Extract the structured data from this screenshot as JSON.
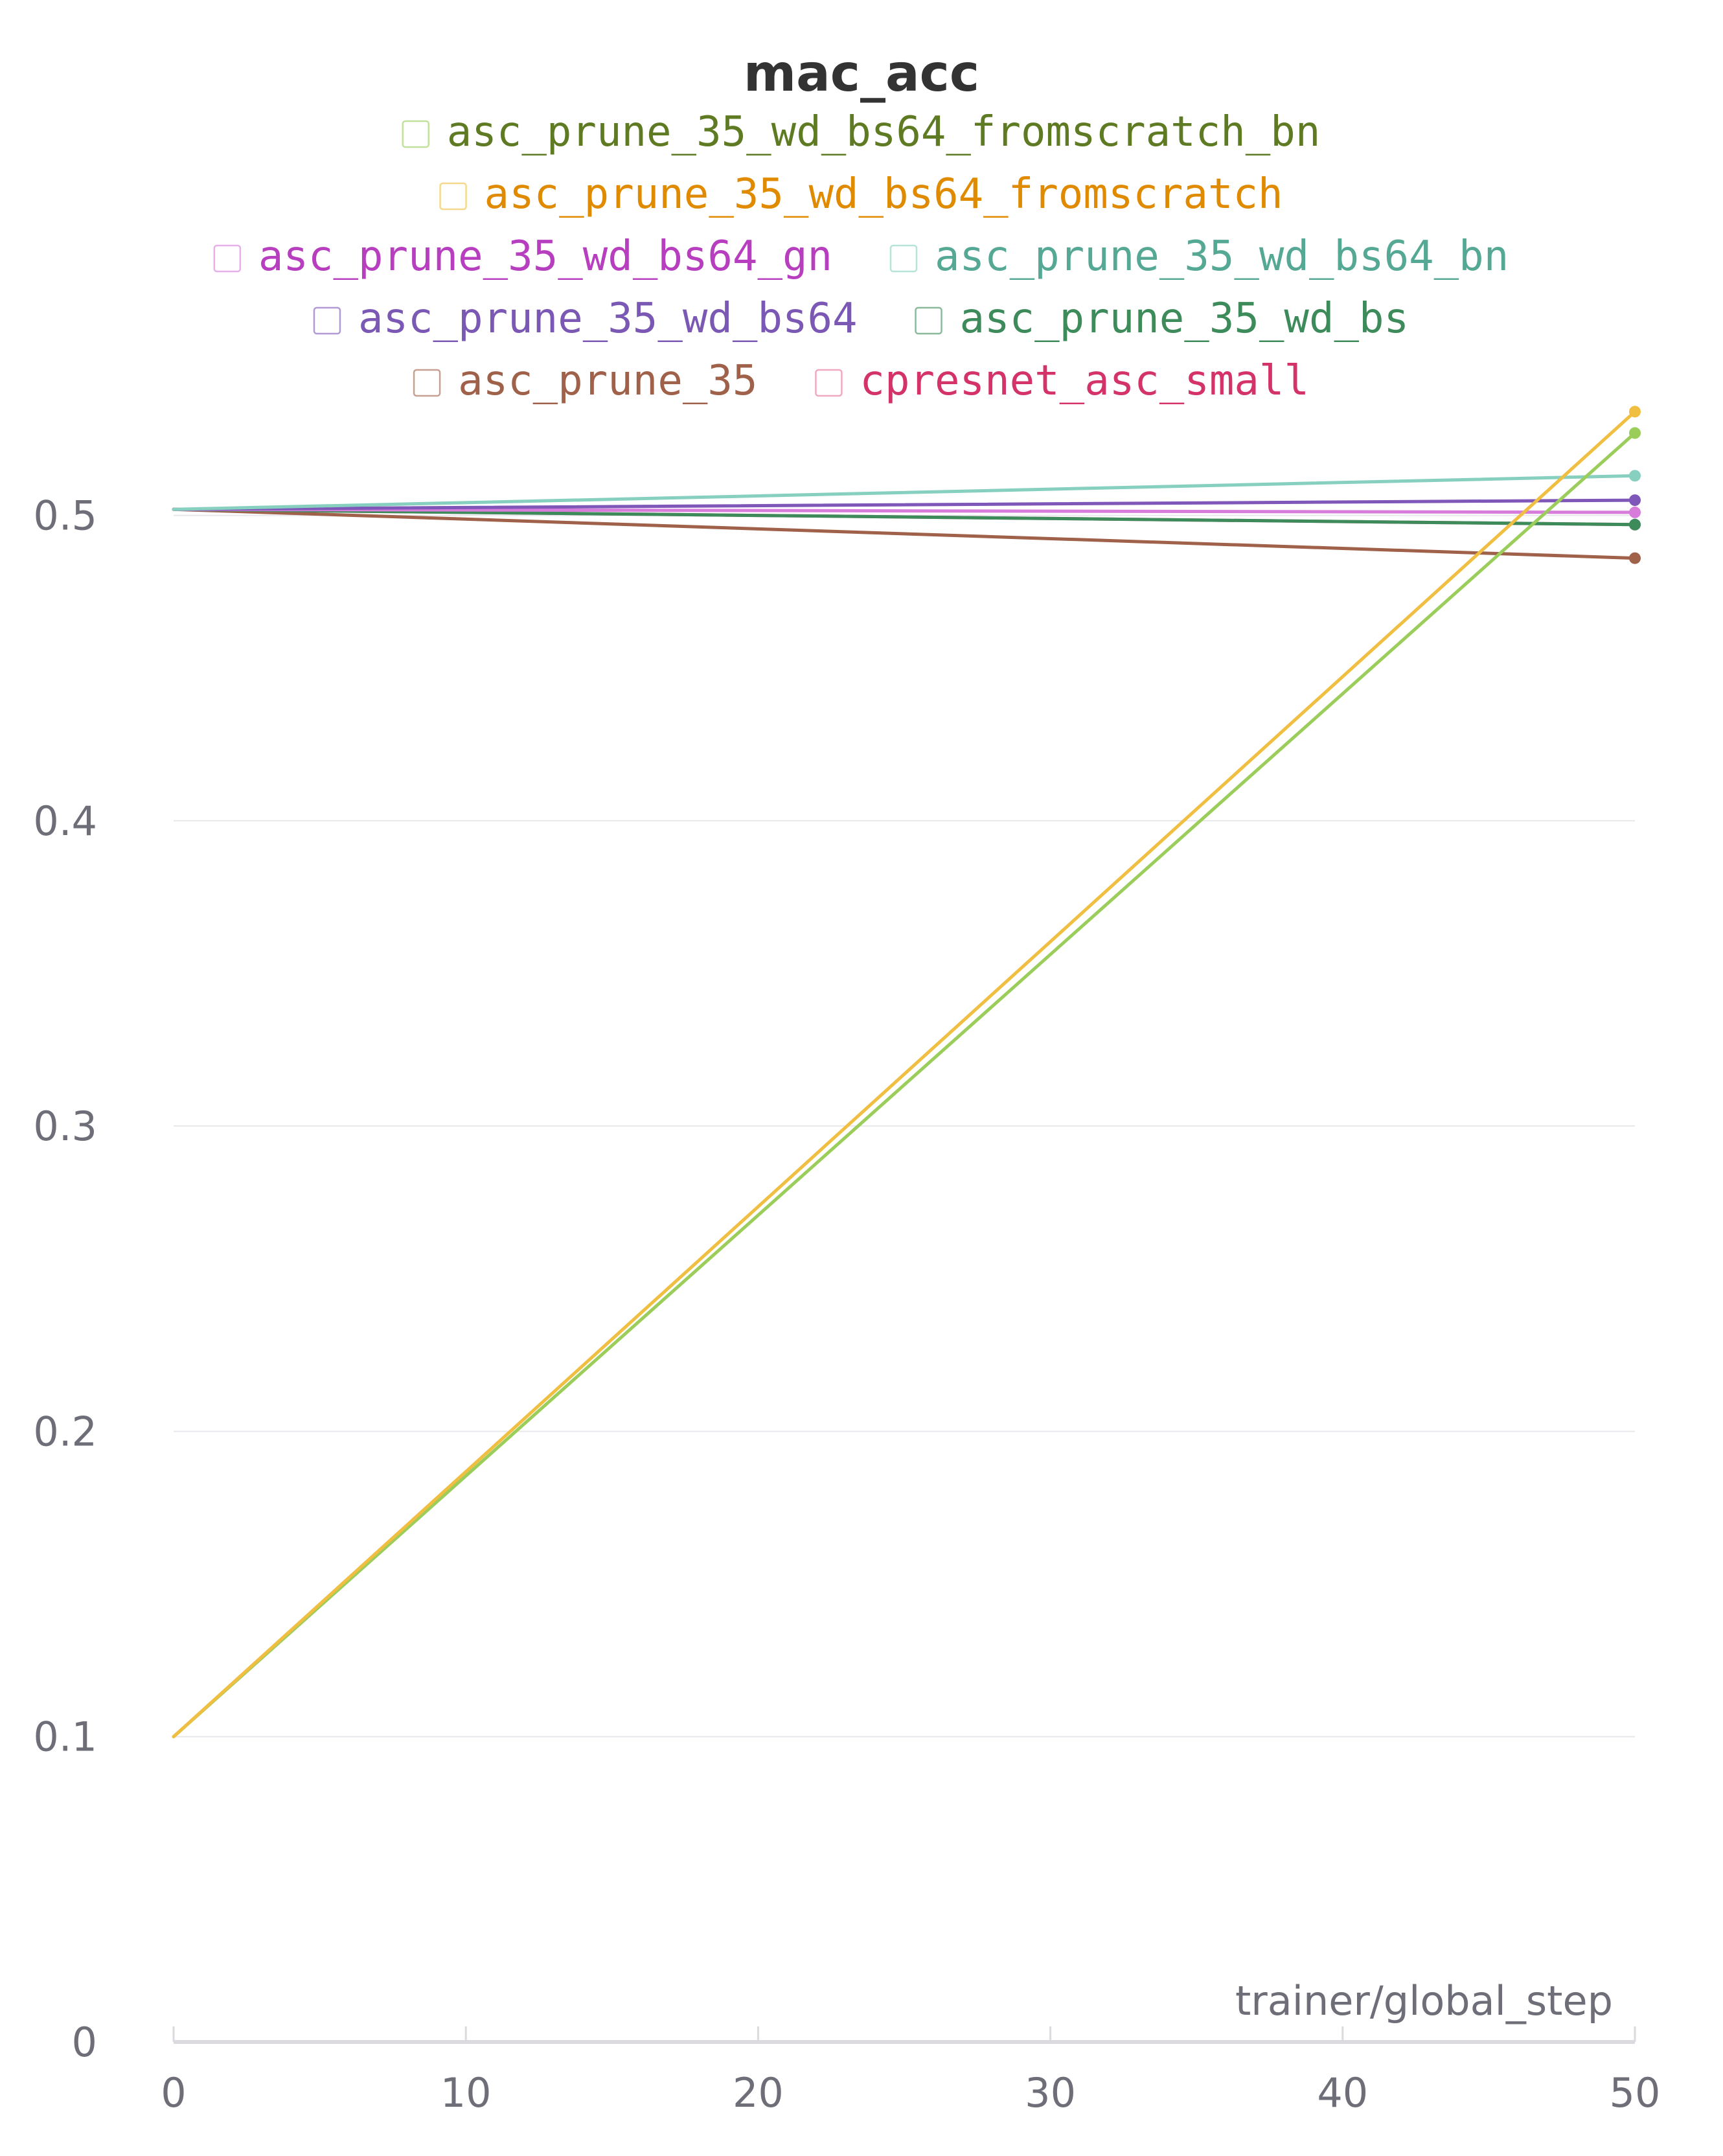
{
  "chart_data": {
    "type": "line",
    "title": "mac_acc",
    "xlabel": "trainer/global_step",
    "ylabel": "",
    "xlim": [
      0,
      50
    ],
    "ylim": [
      0,
      0.55
    ],
    "x_ticks": [
      0,
      10,
      20,
      30,
      40,
      50
    ],
    "y_ticks": [
      0,
      0.1,
      0.2,
      0.3,
      0.4,
      0.5
    ],
    "x_tick_labels": [
      "0",
      "10",
      "20",
      "30",
      "40",
      "50"
    ],
    "y_tick_labels": [
      "0",
      "0.1",
      "0.2",
      "0.3",
      "0.4",
      "0.5"
    ],
    "grid": true,
    "legend_position": "top",
    "x": [
      0,
      50
    ],
    "series": [
      {
        "name": "asc_prune_35_wd_bs64_fromscratch_bn",
        "color": "#9ACD5A",
        "text_color": "#5E7A22",
        "values": [
          0.1,
          0.527
        ]
      },
      {
        "name": "asc_prune_35_wd_bs64_fromscratch",
        "color": "#F0BE40",
        "text_color": "#E08A00",
        "values": [
          0.1,
          0.534
        ]
      },
      {
        "name": "asc_prune_35_wd_bs64_gn",
        "color": "#D77CDB",
        "text_color": "#B63EBF",
        "values": [
          0.502,
          0.501
        ]
      },
      {
        "name": "asc_prune_35_wd_bs64_bn",
        "color": "#87D0C0",
        "text_color": "#55A894",
        "values": [
          0.502,
          0.513
        ]
      },
      {
        "name": "asc_prune_35_wd_bs64",
        "color": "#7E57B8",
        "text_color": "#7A58B4",
        "values": [
          0.502,
          0.505
        ]
      },
      {
        "name": "asc_prune_35_wd_bs",
        "color": "#3D8A5A",
        "text_color": "#3D8A5A",
        "values": [
          0.502,
          0.497
        ]
      },
      {
        "name": "asc_prune_35",
        "color": "#A0614A",
        "text_color": "#A0614A",
        "values": [
          0.502,
          0.486
        ]
      },
      {
        "name": "cpresnet_asc_small",
        "color": "#E8709A",
        "text_color": "#D4336A",
        "values": [
          0.502,
          0.497
        ]
      }
    ],
    "legend_rows": [
      [
        0
      ],
      [
        1
      ],
      [
        2,
        3
      ],
      [
        4,
        5
      ],
      [
        6,
        7
      ]
    ]
  },
  "colors": {
    "title": "#333333",
    "tick_label": "#6E6E78",
    "axis_label": "#6E6E78",
    "grid": "#E8E8EC",
    "axis": "#DADADF"
  }
}
